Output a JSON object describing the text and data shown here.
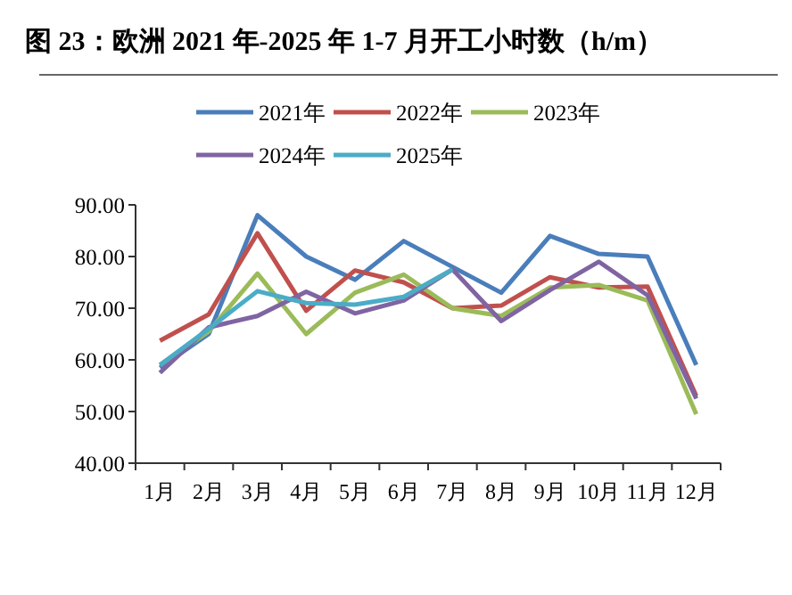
{
  "chart_data": {
    "type": "line",
    "title": "图 23：欧洲 2021 年-2025 年 1-7 月开工小时数（h/m）",
    "categories": [
      "1月",
      "2月",
      "3月",
      "4月",
      "5月",
      "6月",
      "7月",
      "8月",
      "9月",
      "10月",
      "11月",
      "12月"
    ],
    "series": [
      {
        "name": "2021年",
        "color": "#4a7ebb",
        "values": [
          58.5,
          65,
          88,
          80,
          75.5,
          83,
          78,
          73,
          84,
          80.5,
          80,
          59
        ]
      },
      {
        "name": "2022年",
        "color": "#c0504d",
        "values": [
          63.7,
          68.8,
          84.5,
          69.5,
          77.3,
          75,
          70,
          70.5,
          76,
          74,
          74.2,
          53
        ]
      },
      {
        "name": "2023年",
        "color": "#9bbb59",
        "values": [
          59,
          65.5,
          76.7,
          65,
          73,
          76.5,
          70,
          68.5,
          74,
          74.5,
          71.5,
          49.5
        ]
      },
      {
        "name": "2024年",
        "color": "#8064a2",
        "values": [
          57.5,
          66.3,
          68.5,
          73.2,
          69,
          71.5,
          77.5,
          67.5,
          73.5,
          79,
          72.5,
          52.5
        ]
      },
      {
        "name": "2025年",
        "color": "#4bacc6",
        "values": [
          59,
          66,
          73.3,
          71,
          70.7,
          72.2,
          77.5,
          null,
          null,
          null,
          null,
          null
        ]
      }
    ],
    "ylim": [
      40,
      90
    ],
    "yticks": [
      {
        "value": 40,
        "label": "40.00"
      },
      {
        "value": 50,
        "label": "50.00"
      },
      {
        "value": 60,
        "label": "60.00"
      },
      {
        "value": 70,
        "label": "70.00"
      },
      {
        "value": 80,
        "label": "80.00"
      },
      {
        "value": 90,
        "label": "90.00"
      }
    ],
    "grid": false,
    "legend": "top",
    "marker": "none",
    "line_style": "solid"
  }
}
